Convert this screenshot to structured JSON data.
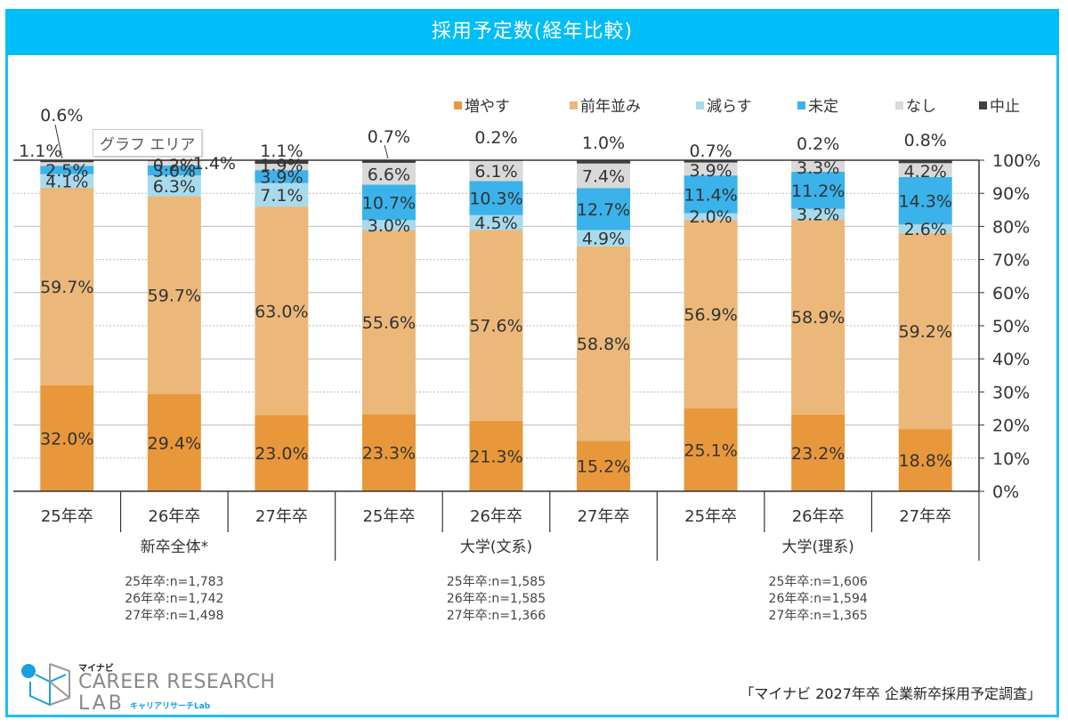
{
  "header": {
    "title": "採用予定数(経年比較)"
  },
  "tooltip": {
    "label": "グラフ エリア"
  },
  "logo": {
    "top": "マイナビ",
    "main": "CAREER RESEARCH",
    "lab": "LAB",
    "kana": "キャリアリサーチLab"
  },
  "source": "「マイナビ 2027年卒 企業新卒採用予定調査」",
  "colors": {
    "増やす": "#E8983A",
    "前年並み": "#EBB87A",
    "減らす": "#A8DAEE",
    "未定": "#3BB2EA",
    "なし": "#D9D9D9",
    "中止": "#404040",
    "frame": "#1ABFF5",
    "header": "#00BEF8"
  },
  "chart_data": {
    "type": "bar",
    "stacked": true,
    "title": "採用予定数(経年比較)",
    "xlabel": "",
    "ylabel": "",
    "ylim": [
      0,
      100
    ],
    "yticks": [
      "0%",
      "10%",
      "20%",
      "30%",
      "40%",
      "50%",
      "60%",
      "70%",
      "80%",
      "90%",
      "100%"
    ],
    "y_axis_side": "right",
    "grid": true,
    "legend_position": "top-right",
    "categories": [
      "25年卒",
      "26年卒",
      "27年卒",
      "25年卒",
      "26年卒",
      "27年卒",
      "25年卒",
      "26年卒",
      "27年卒"
    ],
    "groups": [
      {
        "label": "新卒全体*",
        "notes": [
          "25年卒:n=1,783",
          "26年卒:n=1,742",
          "27年卒:n=1,498"
        ]
      },
      {
        "label": "大学(文系)",
        "notes": [
          "25年卒:n=1,585",
          "26年卒:n=1,585",
          "27年卒:n=1,366"
        ]
      },
      {
        "label": "大学(理系)",
        "notes": [
          "25年卒:n=1,606",
          "26年卒:n=1,594",
          "27年卒:n=1,365"
        ]
      }
    ],
    "series": [
      {
        "name": "増やす",
        "values": [
          32.0,
          29.4,
          23.0,
          23.3,
          21.3,
          15.2,
          25.1,
          23.2,
          18.8
        ]
      },
      {
        "name": "前年並み",
        "values": [
          59.7,
          59.7,
          63.0,
          55.6,
          57.6,
          58.8,
          56.9,
          58.9,
          59.2
        ]
      },
      {
        "name": "減らす",
        "values": [
          4.1,
          6.3,
          7.1,
          3.0,
          4.5,
          4.9,
          2.0,
          3.2,
          2.6
        ]
      },
      {
        "name": "未定",
        "values": [
          2.5,
          3.0,
          3.9,
          10.7,
          10.3,
          12.7,
          11.4,
          11.2,
          14.3
        ]
      },
      {
        "name": "なし",
        "values": [
          1.1,
          1.4,
          1.9,
          6.6,
          6.1,
          7.4,
          3.9,
          3.3,
          4.2
        ]
      },
      {
        "name": "中止",
        "values": [
          0.6,
          0.2,
          1.1,
          0.7,
          0.2,
          1.0,
          0.7,
          0.2,
          0.8
        ]
      }
    ]
  }
}
